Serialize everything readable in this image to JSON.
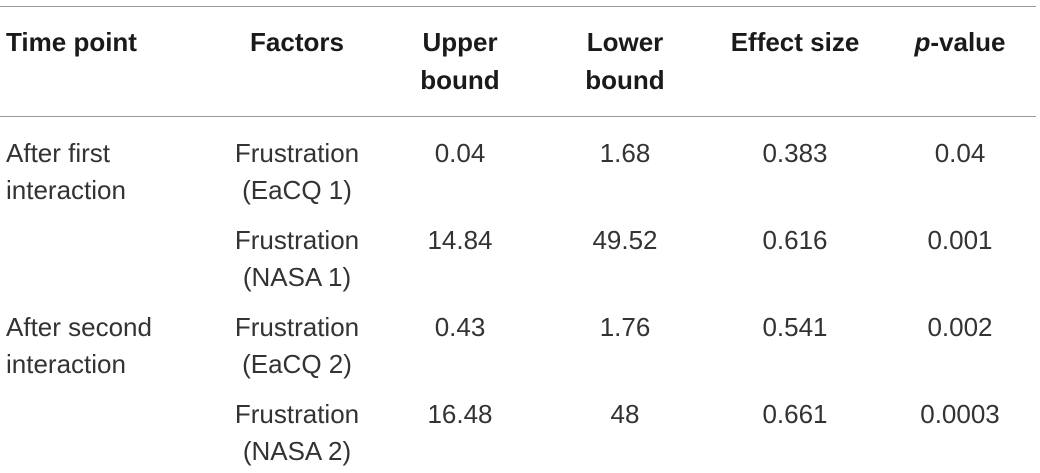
{
  "headers": {
    "time_point": "Time point",
    "factors": "Factors",
    "upper_line1": "Upper",
    "upper_line2": "bound",
    "lower_line1": "Lower",
    "lower_line2": "bound",
    "effect_size": "Effect size",
    "pvalue_p": "p",
    "pvalue_rest": "-value"
  },
  "rows": [
    {
      "time_line1": "After first",
      "time_line2": "interaction",
      "factor_line1": "Frustration",
      "factor_line2": "(EaCQ 1)",
      "upper": "0.04",
      "lower": "1.68",
      "effect": "0.383",
      "pvalue": "0.04"
    },
    {
      "time_line1": "",
      "time_line2": "",
      "factor_line1": "Frustration",
      "factor_line2": "(NASA 1)",
      "upper": "14.84",
      "lower": "49.52",
      "effect": "0.616",
      "pvalue": "0.001"
    },
    {
      "time_line1": "After second",
      "time_line2": "interaction",
      "factor_line1": "Frustration",
      "factor_line2": "(EaCQ 2)",
      "upper": "0.43",
      "lower": "1.76",
      "effect": "0.541",
      "pvalue": "0.002"
    },
    {
      "time_line1": "",
      "time_line2": "",
      "factor_line1": "Frustration",
      "factor_line2": "(NASA 2)",
      "upper": "16.48",
      "lower": "48",
      "effect": "0.661",
      "pvalue": "0.0003"
    }
  ]
}
